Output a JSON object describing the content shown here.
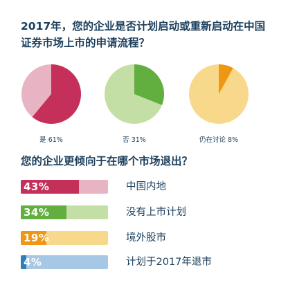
{
  "question1": "2017年，您的企业是否计划启动或重新启动在中国证券市场上市的申请流程？",
  "question2": "您的企业更倾向于在哪个市场退出？",
  "chart_data": [
    {
      "type": "pie",
      "title": "",
      "slices": [
        {
          "name": "是",
          "label": "是 61%",
          "value": 61,
          "highlight": true,
          "color": "#c4305a",
          "rest_color": "#e8b4c3"
        },
        {
          "name": "否",
          "label": "否 31%",
          "value": 31,
          "highlight": true,
          "color": "#62ae3f",
          "rest_color": "#c4dfa6"
        },
        {
          "name": "仍在讨论",
          "label": "仍在讨论 8%",
          "value": 8,
          "highlight": true,
          "color": "#ef9613",
          "rest_color": "#f8d98b"
        }
      ]
    },
    {
      "type": "bar",
      "title": "",
      "categories": [
        "中国内地",
        "没有上市计划",
        "境外股市",
        "计划于2017年退市"
      ],
      "values": [
        43,
        34,
        19,
        4
      ],
      "value_labels": [
        "43%",
        "34%",
        "19%",
        "4%"
      ],
      "xlim": [
        0,
        100
      ],
      "colors": [
        {
          "fill": "#c4305a",
          "track": "#e8b4c3"
        },
        {
          "fill": "#62ae3f",
          "track": "#c4dfa6"
        },
        {
          "fill": "#ef9613",
          "track": "#f8d98b"
        },
        {
          "fill": "#2f7ebd",
          "track": "#a6c8e5"
        }
      ]
    }
  ]
}
